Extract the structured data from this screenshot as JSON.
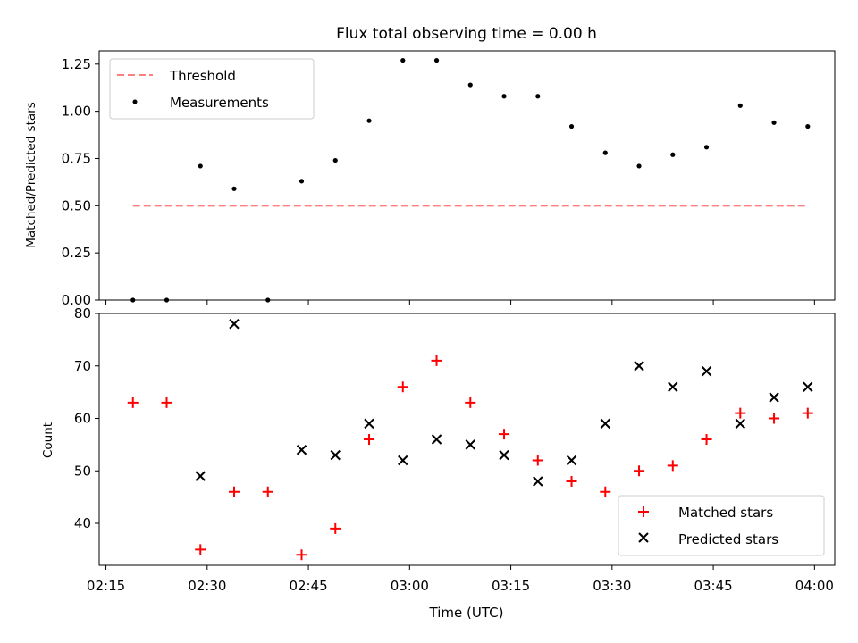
{
  "chart_data": [
    {
      "type": "scatter",
      "title": "Flux total observing time = 0.00 h",
      "xlabel": "",
      "ylabel": "Matched/Predicted stars",
      "x_ticks": [
        "02:15",
        "02:30",
        "02:45",
        "03:00",
        "03:15",
        "03:30",
        "03:45",
        "04:00"
      ],
      "xlim": [
        "02:14",
        "04:03"
      ],
      "ylim": [
        0,
        1.32
      ],
      "y_ticks": [
        "0.00",
        "0.25",
        "0.50",
        "0.75",
        "1.00",
        "1.25"
      ],
      "grid": false,
      "legend_position": "top-left",
      "threshold": {
        "name": "Threshold",
        "value": 0.5,
        "x_range": [
          "02:19",
          "03:59"
        ],
        "color": "#ff7f7f",
        "style": "dashed"
      },
      "series": [
        {
          "name": "Measurements",
          "marker": "dot",
          "color": "#000000",
          "x": [
            "02:19",
            "02:24",
            "02:29",
            "02:34",
            "02:39",
            "02:44",
            "02:49",
            "02:54",
            "02:59",
            "03:04",
            "03:09",
            "03:14",
            "03:19",
            "03:24",
            "03:29",
            "03:34",
            "03:39",
            "03:44",
            "03:49",
            "03:54",
            "03:59"
          ],
          "y": [
            0.0,
            0.0,
            0.71,
            0.59,
            0.0,
            0.63,
            0.74,
            0.95,
            1.27,
            1.27,
            1.14,
            1.08,
            1.08,
            0.92,
            0.78,
            0.71,
            0.77,
            0.81,
            1.03,
            0.94,
            0.92
          ]
        }
      ]
    },
    {
      "type": "scatter",
      "title": "",
      "xlabel": "Time (UTC)",
      "ylabel": "Count",
      "x_ticks": [
        "02:15",
        "02:30",
        "02:45",
        "03:00",
        "03:15",
        "03:30",
        "03:45",
        "04:00"
      ],
      "xlim": [
        "02:14",
        "04:03"
      ],
      "ylim": [
        32,
        80
      ],
      "y_ticks": [
        "40",
        "50",
        "60",
        "70",
        "80"
      ],
      "grid": false,
      "legend_position": "bottom-right",
      "series": [
        {
          "name": "Matched stars",
          "marker": "plus",
          "color": "#ff0000",
          "x": [
            "02:19",
            "02:24",
            "02:29",
            "02:34",
            "02:39",
            "02:44",
            "02:49",
            "02:54",
            "02:59",
            "03:04",
            "03:09",
            "03:14",
            "03:19",
            "03:24",
            "03:29",
            "03:34",
            "03:39",
            "03:44",
            "03:49",
            "03:54",
            "03:59"
          ],
          "y": [
            63,
            63,
            35,
            46,
            46,
            34,
            39,
            56,
            66,
            71,
            63,
            57,
            52,
            48,
            46,
            50,
            51,
            56,
            61,
            60,
            61
          ]
        },
        {
          "name": "Predicted stars",
          "marker": "x",
          "color": "#000000",
          "x": [
            "02:29",
            "02:34",
            "02:44",
            "02:49",
            "02:54",
            "02:59",
            "03:04",
            "03:09",
            "03:14",
            "03:19",
            "03:24",
            "03:29",
            "03:34",
            "03:39",
            "03:44",
            "03:49",
            "03:54",
            "03:59"
          ],
          "y": [
            49,
            78,
            54,
            53,
            59,
            52,
            56,
            55,
            53,
            48,
            52,
            59,
            70,
            66,
            69,
            59,
            64,
            66
          ]
        }
      ]
    }
  ]
}
